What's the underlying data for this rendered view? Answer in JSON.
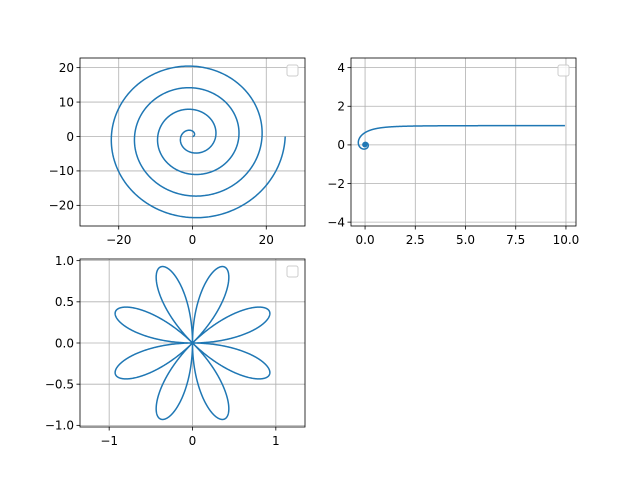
{
  "chart_data": [
    {
      "type": "line",
      "curve": "archimedean-spiral",
      "equation": "r = theta, theta in [0, 8*pi]",
      "title": "",
      "xlabel": "",
      "ylabel": "",
      "xlim": [
        -30.5,
        30.5
      ],
      "ylim": [
        -26,
        22.8
      ],
      "xticks": [
        -20,
        0,
        20
      ],
      "yticks": [
        -20,
        -10,
        0,
        10,
        20
      ],
      "xtick_labels": [
        "−20",
        "0",
        "20"
      ],
      "ytick_labels": [
        "−20",
        "−10",
        "0",
        "10",
        "20"
      ],
      "grid": true,
      "legend": "top-right (empty)",
      "series": [
        {
          "color": "#1f77b4",
          "theta_range": [
            0,
            25.13
          ],
          "end_point": [
            25.13,
            0
          ]
        }
      ]
    },
    {
      "type": "line",
      "curve": "hyperbolic-spiral",
      "equation": "r = 1/theta, theta in [0.1, 8*pi]",
      "title": "",
      "xlabel": "",
      "ylabel": "",
      "xlim": [
        -0.7,
        10.5
      ],
      "ylim": [
        -4.2,
        4.5
      ],
      "xticks": [
        0,
        2.5,
        5,
        7.5,
        10
      ],
      "yticks": [
        -4,
        -2,
        0,
        2,
        4
      ],
      "xtick_labels": [
        "0.0",
        "2.5",
        "5.0",
        "7.5",
        "10.0"
      ],
      "ytick_labels": [
        "−4",
        "−2",
        "0",
        "2",
        "4"
      ],
      "grid": true,
      "legend": "top-right (empty)",
      "series": [
        {
          "color": "#1f77b4",
          "theta_range": [
            0.1,
            25.13
          ],
          "start_point": [
            9.95,
            0.998
          ]
        }
      ]
    },
    {
      "type": "line",
      "curve": "rose",
      "equation": "r = sin(4*theta)",
      "title": "",
      "xlabel": "",
      "ylabel": "",
      "xlim": [
        -1.35,
        1.35
      ],
      "ylim": [
        -1.02,
        1.02
      ],
      "xticks": [
        -1,
        0,
        1
      ],
      "yticks": [
        -1,
        -0.5,
        0,
        0.5,
        1
      ],
      "xtick_labels": [
        "−1",
        "0",
        "1"
      ],
      "ytick_labels": [
        "−1.0",
        "−0.5",
        "0.0",
        "0.5",
        "1.0"
      ],
      "grid": true,
      "legend": "top-right (empty)",
      "series": [
        {
          "color": "#1f77b4",
          "petals": 8,
          "max_radius": 1
        }
      ]
    }
  ]
}
